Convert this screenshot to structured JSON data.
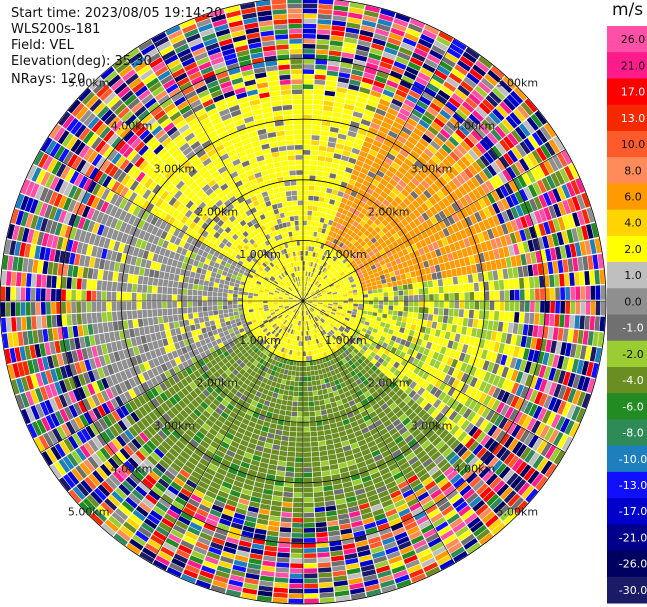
{
  "info": {
    "start_time": "Start time: 2023/08/05 19:14:20",
    "device": "WLS200s-181",
    "field": "Field: VEL",
    "elevation": "Elevation(deg): 35.30",
    "nrays": "NRays: 120"
  },
  "chart_data": {
    "type": "heatmap",
    "projection": "polar-ppi",
    "field": "VEL",
    "unit": "m/s",
    "rays": 120,
    "max_range_km": 5.0,
    "range_rings_km": [
      1.0,
      2.0,
      3.0,
      4.0,
      5.0
    ],
    "range_labels": [
      "1.00km",
      "2.00km",
      "3.00km",
      "4.00km",
      "5.00km"
    ],
    "spokes_deg": [
      0,
      30,
      60,
      90,
      120,
      150,
      180,
      210,
      240,
      270,
      300,
      330
    ],
    "colorbar": {
      "ticks": [
        26.0,
        21.0,
        17.0,
        13.0,
        10.0,
        8.0,
        6.0,
        4.0,
        2.0,
        1.0,
        0.0,
        -1.0,
        -2.0,
        -4.0,
        -6.0,
        -8.0,
        -10.0,
        -13.0,
        -17.0,
        -21.0,
        -26.0,
        -30.0
      ],
      "labels": [
        "26.0",
        "21.0",
        "17.0",
        "13.0",
        "10.0",
        "8.0",
        "6.0",
        "4.0",
        "2.0",
        "1.0",
        "0.0",
        "-1.0",
        "-2.0",
        "-4.0",
        "-6.0",
        "-8.0",
        "-10.0",
        "-13.0",
        "-17.0",
        "-21.0",
        "-26.0",
        "-30.0"
      ],
      "colors": [
        "#ff4fa6",
        "#ff1c8a",
        "#ff0000",
        "#f52800",
        "#ff5a2c",
        "#ff8a5a",
        "#ff9a00",
        "#ffd400",
        "#ffff00",
        "#bfbfbf",
        "#8f8f8f",
        "#707070",
        "#9acd32",
        "#6b8e23",
        "#228b22",
        "#2e8b57",
        "#1e7fbf",
        "#1010ff",
        "#0000cd",
        "#00008b",
        "#000060",
        "#1a1a66"
      ]
    },
    "pattern": {
      "noise_begins_km": 3.6,
      "near_field_value": 2.0,
      "north_sector_value": 2.0,
      "northeast_sector_value": 6.0,
      "west_sector_value": 0.0,
      "south_sector_value": -4.0
    }
  }
}
